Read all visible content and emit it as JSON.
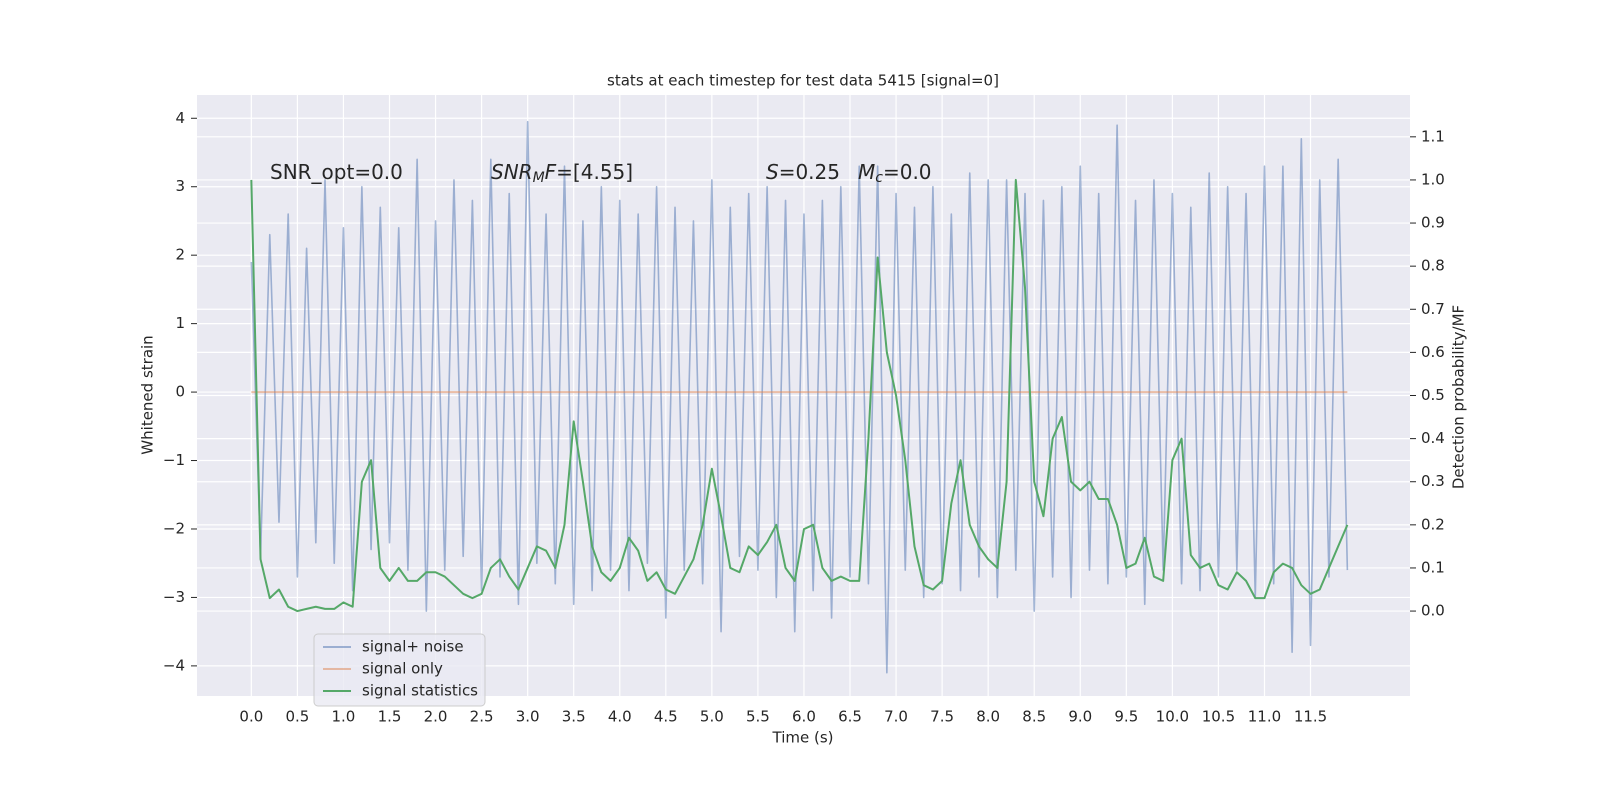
{
  "chart_data": {
    "type": "line",
    "title": "stats at each timestep for test data 5415 [signal=0]",
    "xlabel": "Time (s)",
    "ylabel": "Whitened strain",
    "y2label": "Detection probability/MF",
    "x": [
      0.0,
      0.1,
      0.2,
      0.3,
      0.4,
      0.5,
      0.6,
      0.7,
      0.8,
      0.9,
      1.0,
      1.1,
      1.2,
      1.3,
      1.4,
      1.5,
      1.6,
      1.7,
      1.8,
      1.9,
      2.0,
      2.1,
      2.2,
      2.3,
      2.4,
      2.5,
      2.6,
      2.7,
      2.8,
      2.9,
      3.0,
      3.1,
      3.2,
      3.3,
      3.4,
      3.5,
      3.6,
      3.7,
      3.8,
      3.9,
      4.0,
      4.1,
      4.2,
      4.3,
      4.4,
      4.5,
      4.6,
      4.7,
      4.8,
      4.9,
      5.0,
      5.1,
      5.2,
      5.3,
      5.4,
      5.5,
      5.6,
      5.7,
      5.8,
      5.9,
      6.0,
      6.1,
      6.2,
      6.3,
      6.4,
      6.5,
      6.6,
      6.7,
      6.8,
      6.9,
      7.0,
      7.1,
      7.2,
      7.3,
      7.4,
      7.5,
      7.6,
      7.7,
      7.8,
      7.9,
      8.0,
      8.1,
      8.2,
      8.3,
      8.4,
      8.5,
      8.6,
      8.7,
      8.8,
      8.9,
      9.0,
      9.1,
      9.2,
      9.3,
      9.4,
      9.5,
      9.6,
      9.7,
      9.8,
      9.9,
      10.0,
      10.1,
      10.2,
      10.3,
      10.4,
      10.5,
      10.6,
      10.7,
      10.8,
      10.9,
      11.0,
      11.1,
      11.2,
      11.3,
      11.4,
      11.5,
      11.6,
      11.7,
      11.8,
      11.9
    ],
    "series": [
      {
        "name": "signal+ noise",
        "color": "#4c72b0",
        "values": [
          1.9,
          -2.4,
          2.3,
          -1.9,
          2.6,
          -2.7,
          2.1,
          -2.2,
          3.1,
          -2.5,
          2.4,
          -2.9,
          3.0,
          -2.3,
          2.7,
          -2.2,
          2.4,
          -2.6,
          3.4,
          -3.2,
          2.5,
          -2.6,
          3.1,
          -2.4,
          2.8,
          -2.9,
          3.4,
          -2.7,
          2.9,
          -3.1,
          3.95,
          -2.5,
          2.6,
          -2.8,
          3.3,
          -3.1,
          2.5,
          -2.9,
          3.0,
          -2.6,
          2.8,
          -2.9,
          2.6,
          -2.5,
          3.0,
          -3.3,
          2.7,
          -2.6,
          2.5,
          -2.8,
          3.1,
          -3.5,
          2.7,
          -2.4,
          2.9,
          -2.6,
          3.0,
          -3.0,
          2.8,
          -3.5,
          2.6,
          -2.9,
          2.8,
          -3.3,
          3.0,
          -2.7,
          3.3,
          -2.8,
          3.3,
          -4.1,
          2.9,
          -2.6,
          2.7,
          -3.0,
          3.0,
          -2.8,
          2.6,
          -2.9,
          3.2,
          -2.7,
          3.1,
          -3.0,
          3.1,
          -2.6,
          2.9,
          -3.2,
          2.8,
          -2.7,
          3.0,
          -3.0,
          3.3,
          -2.6,
          2.9,
          -2.8,
          3.9,
          -2.7,
          2.8,
          -3.1,
          3.1,
          -2.6,
          2.9,
          -2.8,
          2.7,
          -2.9,
          3.2,
          -2.7,
          3.0,
          -2.6,
          2.9,
          -3.0,
          3.3,
          -2.8,
          3.3,
          -3.8,
          3.7,
          -3.7,
          3.1,
          -2.7,
          3.4,
          -2.6
        ]
      },
      {
        "name": "signal only",
        "color": "#dd8452",
        "values": [
          0,
          0,
          0,
          0,
          0,
          0,
          0,
          0,
          0,
          0,
          0,
          0,
          0,
          0,
          0,
          0,
          0,
          0,
          0,
          0,
          0,
          0,
          0,
          0,
          0,
          0,
          0,
          0,
          0,
          0,
          0,
          0,
          0,
          0,
          0,
          0,
          0,
          0,
          0,
          0,
          0,
          0,
          0,
          0,
          0,
          0,
          0,
          0,
          0,
          0,
          0,
          0,
          0,
          0,
          0,
          0,
          0,
          0,
          0,
          0,
          0,
          0,
          0,
          0,
          0,
          0,
          0,
          0,
          0,
          0,
          0,
          0,
          0,
          0,
          0,
          0,
          0,
          0,
          0,
          0,
          0,
          0,
          0,
          0,
          0,
          0,
          0,
          0,
          0,
          0,
          0,
          0,
          0,
          0,
          0,
          0,
          0,
          0,
          0,
          0,
          0,
          0,
          0,
          0,
          0,
          0,
          0,
          0,
          0,
          0,
          0,
          0,
          0,
          0,
          0,
          0,
          0,
          0,
          0,
          0
        ]
      },
      {
        "name": "signal statistics",
        "color": "#55a868",
        "axis": "y2",
        "values": [
          1.0,
          0.12,
          0.03,
          0.05,
          0.01,
          0.0,
          0.005,
          0.01,
          0.005,
          0.005,
          0.02,
          0.01,
          0.3,
          0.35,
          0.1,
          0.07,
          0.1,
          0.07,
          0.07,
          0.09,
          0.09,
          0.08,
          0.06,
          0.04,
          0.03,
          0.04,
          0.1,
          0.12,
          0.08,
          0.05,
          0.1,
          0.15,
          0.14,
          0.1,
          0.2,
          0.44,
          0.3,
          0.15,
          0.09,
          0.07,
          0.1,
          0.17,
          0.14,
          0.07,
          0.09,
          0.05,
          0.04,
          0.08,
          0.12,
          0.2,
          0.33,
          0.22,
          0.1,
          0.09,
          0.15,
          0.13,
          0.16,
          0.2,
          0.1,
          0.07,
          0.19,
          0.2,
          0.1,
          0.07,
          0.08,
          0.07,
          0.07,
          0.4,
          0.82,
          0.6,
          0.5,
          0.35,
          0.15,
          0.06,
          0.05,
          0.07,
          0.25,
          0.35,
          0.2,
          0.15,
          0.12,
          0.1,
          0.3,
          1.0,
          0.75,
          0.3,
          0.22,
          0.4,
          0.45,
          0.3,
          0.28,
          0.3,
          0.26,
          0.26,
          0.2,
          0.1,
          0.11,
          0.17,
          0.08,
          0.07,
          0.35,
          0.4,
          0.13,
          0.1,
          0.11,
          0.06,
          0.05,
          0.09,
          0.07,
          0.03,
          0.03,
          0.09,
          0.11,
          0.1,
          0.06,
          0.04,
          0.05,
          0.1,
          0.15,
          0.2
        ]
      }
    ],
    "xlim": [
      -0.59,
      12.58
    ],
    "xticks": [
      {
        "value": 0,
        "label": "0.0"
      },
      0.5,
      {
        "value": 1,
        "label": "1.0"
      },
      1.5,
      {
        "value": 2,
        "label": "2.0"
      },
      2.5,
      {
        "value": 3,
        "label": "3.0"
      },
      3.5,
      {
        "value": 4,
        "label": "4.0"
      },
      4.5,
      {
        "value": 5,
        "label": "5.0"
      },
      5.5,
      {
        "value": 6,
        "label": "6.0"
      },
      6.5,
      {
        "value": 7,
        "label": "7.0"
      },
      7.5,
      {
        "value": 8,
        "label": "8.0"
      },
      8.5,
      {
        "value": 9,
        "label": "9.0"
      },
      9.5,
      {
        "value": 10,
        "label": "10.0"
      },
      10.5,
      {
        "value": 11,
        "label": "11.0"
      },
      11.5
    ],
    "ylim": [
      -4.44,
      4.34
    ],
    "yticks": [
      {
        "value": -4,
        "label": "−4"
      },
      {
        "value": -3,
        "label": "−3"
      },
      {
        "value": -2,
        "label": "−2"
      },
      {
        "value": -1,
        "label": "−1"
      },
      0,
      1,
      2,
      3,
      4
    ],
    "y2lim": [
      -0.197,
      1.197
    ],
    "y2ticks": [
      {
        "value": 0,
        "label": "0.0"
      },
      0.1,
      0.2,
      0.3,
      0.4,
      0.5,
      0.6,
      0.7,
      0.8,
      0.9,
      {
        "value": 1,
        "label": "1.0"
      },
      1.1
    ],
    "annotations": [
      [
        "SNR_opt=0.0"
      ],
      [
        "SNR",
        "M",
        "F",
        "=[4.55]"
      ],
      [
        "S",
        "=0.25"
      ],
      [
        "M",
        "c",
        "=0.0"
      ]
    ],
    "grid": true,
    "legend_loc": "lower left"
  }
}
